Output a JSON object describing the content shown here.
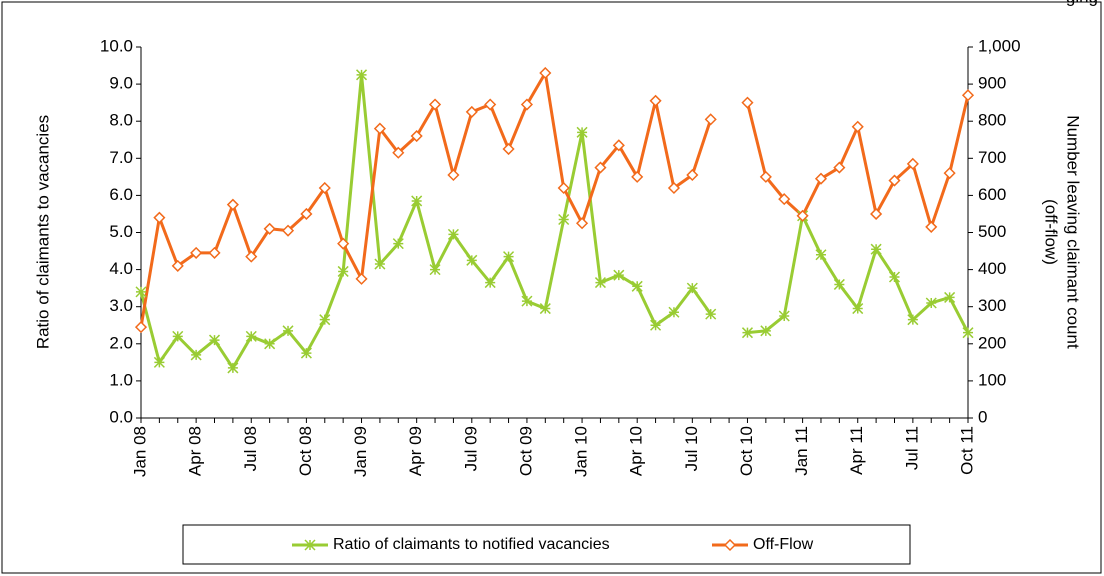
{
  "chart_data": {
    "type": "line",
    "title": "ging",
    "y_label": "Ratio of claimants to vacancies",
    "y2_label": [
      "Number leaving claimant count",
      "(off-flow)"
    ],
    "categories": [
      "Jan 08",
      null,
      null,
      "Apr 08",
      null,
      null,
      "Jul 08",
      null,
      null,
      "Oct 08",
      null,
      null,
      "Jan 09",
      null,
      null,
      "Apr 09",
      null,
      null,
      "Jul 09",
      null,
      null,
      "Oct 09",
      null,
      null,
      "Jan 10",
      null,
      null,
      "Apr 10",
      null,
      null,
      "Jul 10",
      null,
      null,
      "Oct 10",
      null,
      null,
      "Jan 11",
      null,
      null,
      "Apr 11",
      null,
      null,
      "Jul 11",
      null,
      null,
      "Oct 11"
    ],
    "series": [
      {
        "name": "Ratio of claimants to notified vacancies",
        "color": "#99cc33",
        "marker": "star",
        "values": [
          3.4,
          1.5,
          2.2,
          1.7,
          2.1,
          1.35,
          2.2,
          2.0,
          2.35,
          1.75,
          2.65,
          3.95,
          9.25,
          4.15,
          4.7,
          5.85,
          4.0,
          4.95,
          4.25,
          3.65,
          4.35,
          3.15,
          2.95,
          5.35,
          7.7,
          3.65,
          3.85,
          3.55,
          2.5,
          2.85,
          3.5,
          2.8,
          null,
          2.3,
          2.35,
          2.75,
          5.45,
          4.4,
          3.6,
          2.95,
          4.55,
          3.8,
          2.65,
          3.1,
          3.25,
          2.3
        ]
      },
      {
        "name": "Off-Flow",
        "color": "#f26a1b",
        "marker": "diamond",
        "axis": "y2",
        "values": [
          245,
          540,
          410,
          445,
          445,
          575,
          435,
          510,
          505,
          550,
          620,
          470,
          375,
          780,
          715,
          760,
          845,
          655,
          825,
          845,
          725,
          845,
          930,
          620,
          525,
          675,
          735,
          650,
          855,
          620,
          655,
          805,
          null,
          850,
          650,
          590,
          545,
          645,
          675,
          785,
          550,
          640,
          685,
          515,
          660,
          870
        ]
      }
    ],
    "ylim": [
      0,
      10
    ],
    "yticks": [
      {
        "value": 0,
        "label": "0.0"
      },
      {
        "value": 1,
        "label": "1.0"
      },
      {
        "value": 2,
        "label": "2.0"
      },
      {
        "value": 3,
        "label": "3.0"
      },
      {
        "value": 4,
        "label": "4.0"
      },
      {
        "value": 5,
        "label": "5.0"
      },
      {
        "value": 6,
        "label": "6.0"
      },
      {
        "value": 7,
        "label": "7.0"
      },
      {
        "value": 8,
        "label": "8.0"
      },
      {
        "value": 9,
        "label": "9.0"
      },
      {
        "value": 10,
        "label": "10.0"
      }
    ],
    "y2lim": [
      0,
      1000
    ],
    "y2ticks": [
      0,
      100,
      200,
      300,
      400,
      500,
      600,
      700,
      800,
      900,
      {
        "value": 1000,
        "label": "1,000"
      }
    ],
    "legend": "bottom"
  }
}
